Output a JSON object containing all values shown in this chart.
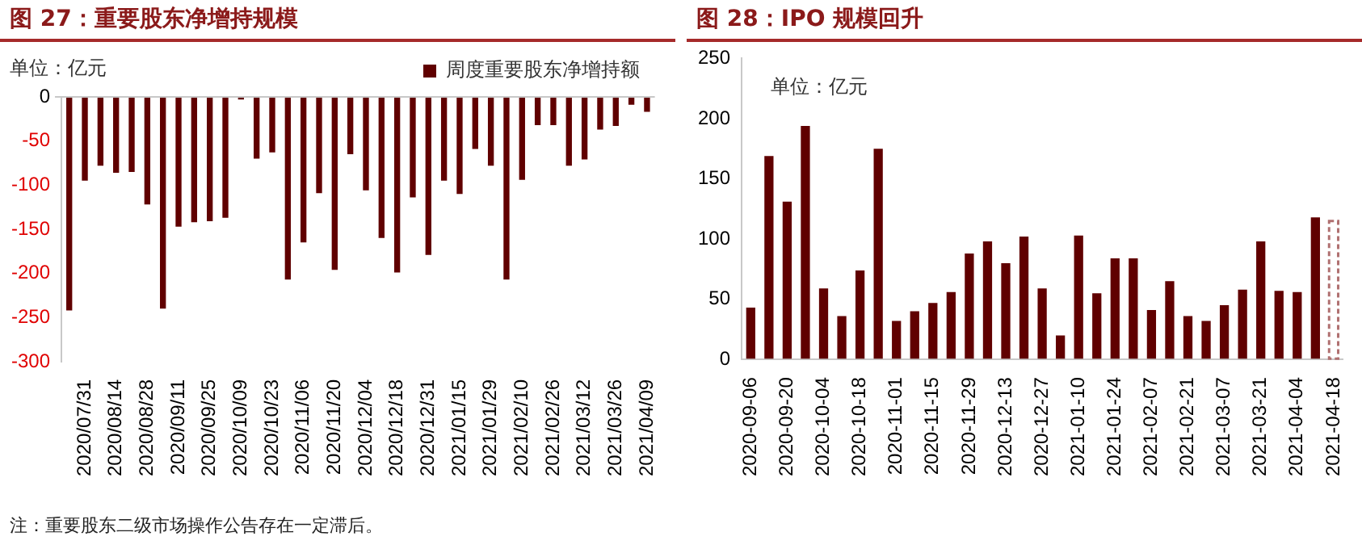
{
  "chart_data": [
    {
      "type": "bar",
      "title": "图 27：重要股东净增持规模",
      "ylabel": "单位：亿元",
      "categories": [
        null,
        "2020/07/31",
        null,
        "2020/08/14",
        null,
        "2020/08/28",
        null,
        "2020/09/11",
        null,
        "2020/09/25",
        null,
        "2020/10/09",
        null,
        "2020/10/23",
        null,
        "2020/11/06",
        null,
        "2020/11/20",
        null,
        "2020/12/04",
        null,
        "2020/12/18",
        null,
        "2020/12/31",
        null,
        "2021/01/15",
        null,
        "2021/01/29",
        null,
        "2021/02/10",
        null,
        "2021/02/26",
        null,
        "2021/03/12",
        null,
        "2021/03/26",
        null,
        "2021/04/09"
      ],
      "series": [
        {
          "name": "周度重要股东净增持额",
          "color": "#600000",
          "values": [
            -242,
            -95,
            -78,
            -86,
            -85,
            -122,
            -240,
            -147,
            -142,
            -141,
            -137,
            -3,
            -70,
            -63,
            -207,
            -165,
            -109,
            -196,
            -65,
            -106,
            -160,
            -199,
            -114,
            -179,
            -95,
            -110,
            -59,
            -78,
            -207,
            -94,
            -32,
            -32,
            -78,
            -71,
            -37,
            -33,
            -9,
            -17
          ]
        }
      ],
      "ylim": [
        -300,
        0
      ],
      "yticks": [
        -300,
        -250,
        -200,
        -150,
        -100,
        -50,
        0
      ],
      "grid": false,
      "legend": "top",
      "annotations": [
        "注：重要股东二级市场操作公告存在一定滞后。"
      ]
    },
    {
      "type": "bar",
      "title": "图 28：IPO 规模回升",
      "ylabel": "单位：亿元",
      "categories": [
        "2020-09-06",
        null,
        "2020-09-20",
        null,
        "2020-10-04",
        null,
        "2020-10-18",
        null,
        "2020-11-01",
        null,
        "2020-11-15",
        null,
        "2020-11-29",
        null,
        "2020-12-13",
        null,
        "2020-12-27",
        null,
        "2021-01-10",
        null,
        "2021-01-24",
        null,
        "2021-02-07",
        null,
        "2021-02-21",
        null,
        "2021-03-07",
        null,
        "2021-03-21",
        null,
        "2021-04-04",
        null,
        "2021-04-18"
      ],
      "series": [
        {
          "color": "#600000",
          "values": [
            43,
            169,
            131,
            194,
            59,
            36,
            74,
            175,
            32,
            40,
            47,
            56,
            88,
            98,
            80,
            102,
            59,
            20,
            103,
            55,
            84,
            84,
            41,
            65,
            36,
            32,
            45,
            58,
            98,
            57,
            56,
            118,
            null
          ]
        },
        {
          "color": "#b07070",
          "line_style": "dashed",
          "values": [
            null,
            null,
            null,
            null,
            null,
            null,
            null,
            null,
            null,
            null,
            null,
            null,
            null,
            null,
            null,
            null,
            null,
            null,
            null,
            null,
            null,
            null,
            null,
            null,
            null,
            null,
            null,
            null,
            null,
            null,
            null,
            null,
            115
          ]
        }
      ],
      "ylim": [
        0,
        250
      ],
      "yticks": [
        0,
        50,
        100,
        150,
        200,
        250
      ],
      "grid": false,
      "legend": false
    }
  ]
}
